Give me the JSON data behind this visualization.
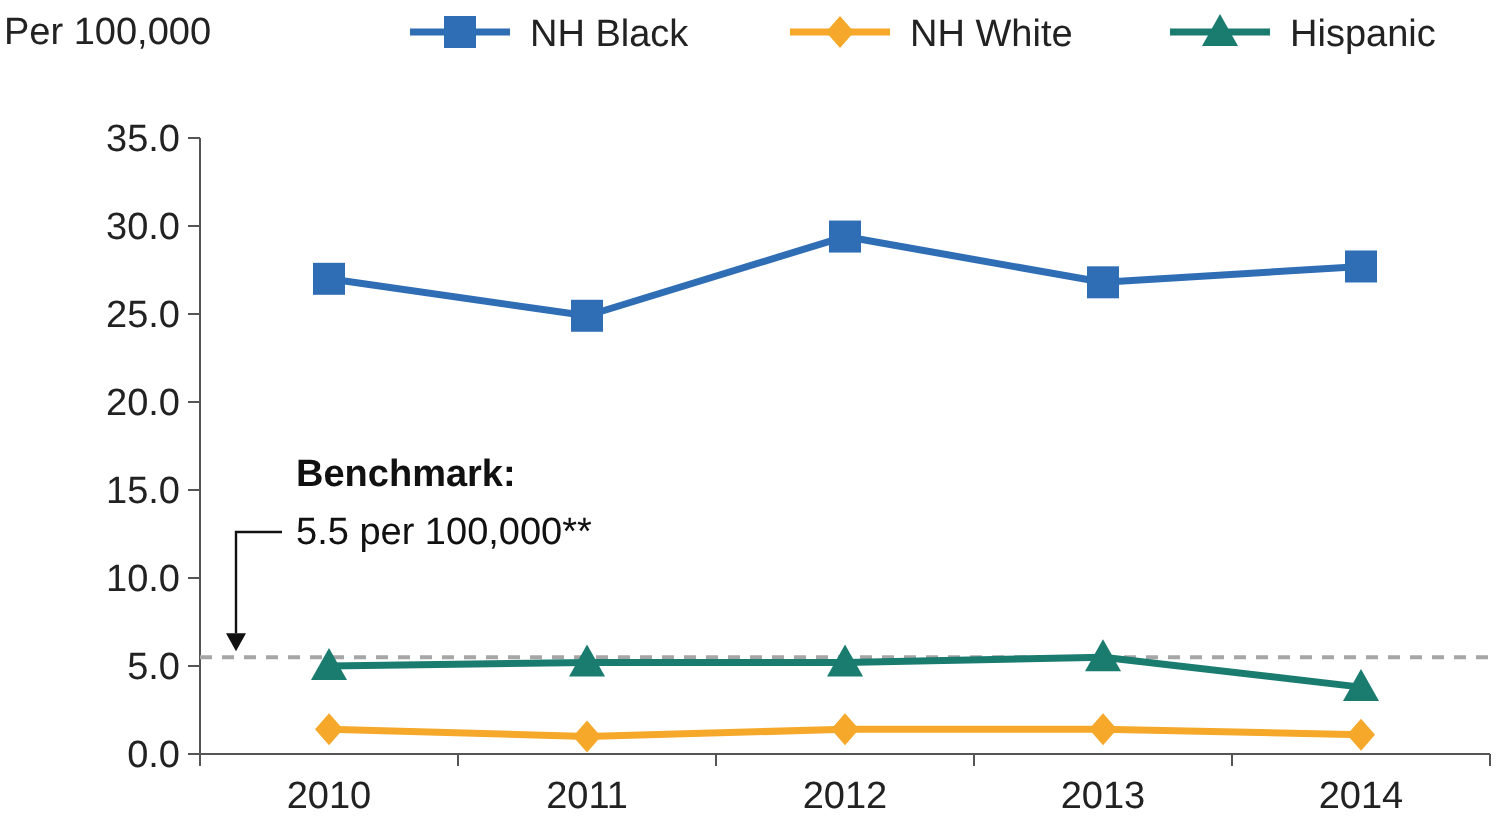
{
  "chart_data": {
    "type": "line",
    "ylabel": "Per 100,000",
    "categories": [
      "2010",
      "2011",
      "2012",
      "2013",
      "2014"
    ],
    "series": [
      {
        "name": "NH Black",
        "color": "#2f6db5",
        "marker": "square",
        "values": [
          27.0,
          24.9,
          29.4,
          26.8,
          27.7
        ]
      },
      {
        "name": "NH White",
        "color": "#f5a82a",
        "marker": "diamond",
        "values": [
          1.4,
          1.0,
          1.4,
          1.4,
          1.1
        ]
      },
      {
        "name": "Hispanic",
        "color": "#1a7b6f",
        "marker": "triangle",
        "values": [
          5.0,
          5.2,
          5.2,
          5.5,
          3.8
        ]
      }
    ],
    "ylim": [
      0,
      35
    ],
    "yticks": [
      {
        "value": 0,
        "label": "0.0"
      },
      {
        "value": 5,
        "label": "5.0"
      },
      {
        "value": 10,
        "label": "10.0"
      },
      {
        "value": 15,
        "label": "15.0"
      },
      {
        "value": 20,
        "label": "20.0"
      },
      {
        "value": 25,
        "label": "25.0"
      },
      {
        "value": 30,
        "label": "30.0"
      },
      {
        "value": 35,
        "label": "35.0"
      }
    ],
    "ref_lines": [
      {
        "axis": "y",
        "value": 5.5,
        "label": null,
        "color": "#a6a6a6",
        "line_style": "dashed"
      }
    ],
    "annotations": [
      "Benchmark:",
      "5.5 per 100,000**"
    ],
    "legend": "top",
    "grid": false,
    "line_style": "solid"
  }
}
